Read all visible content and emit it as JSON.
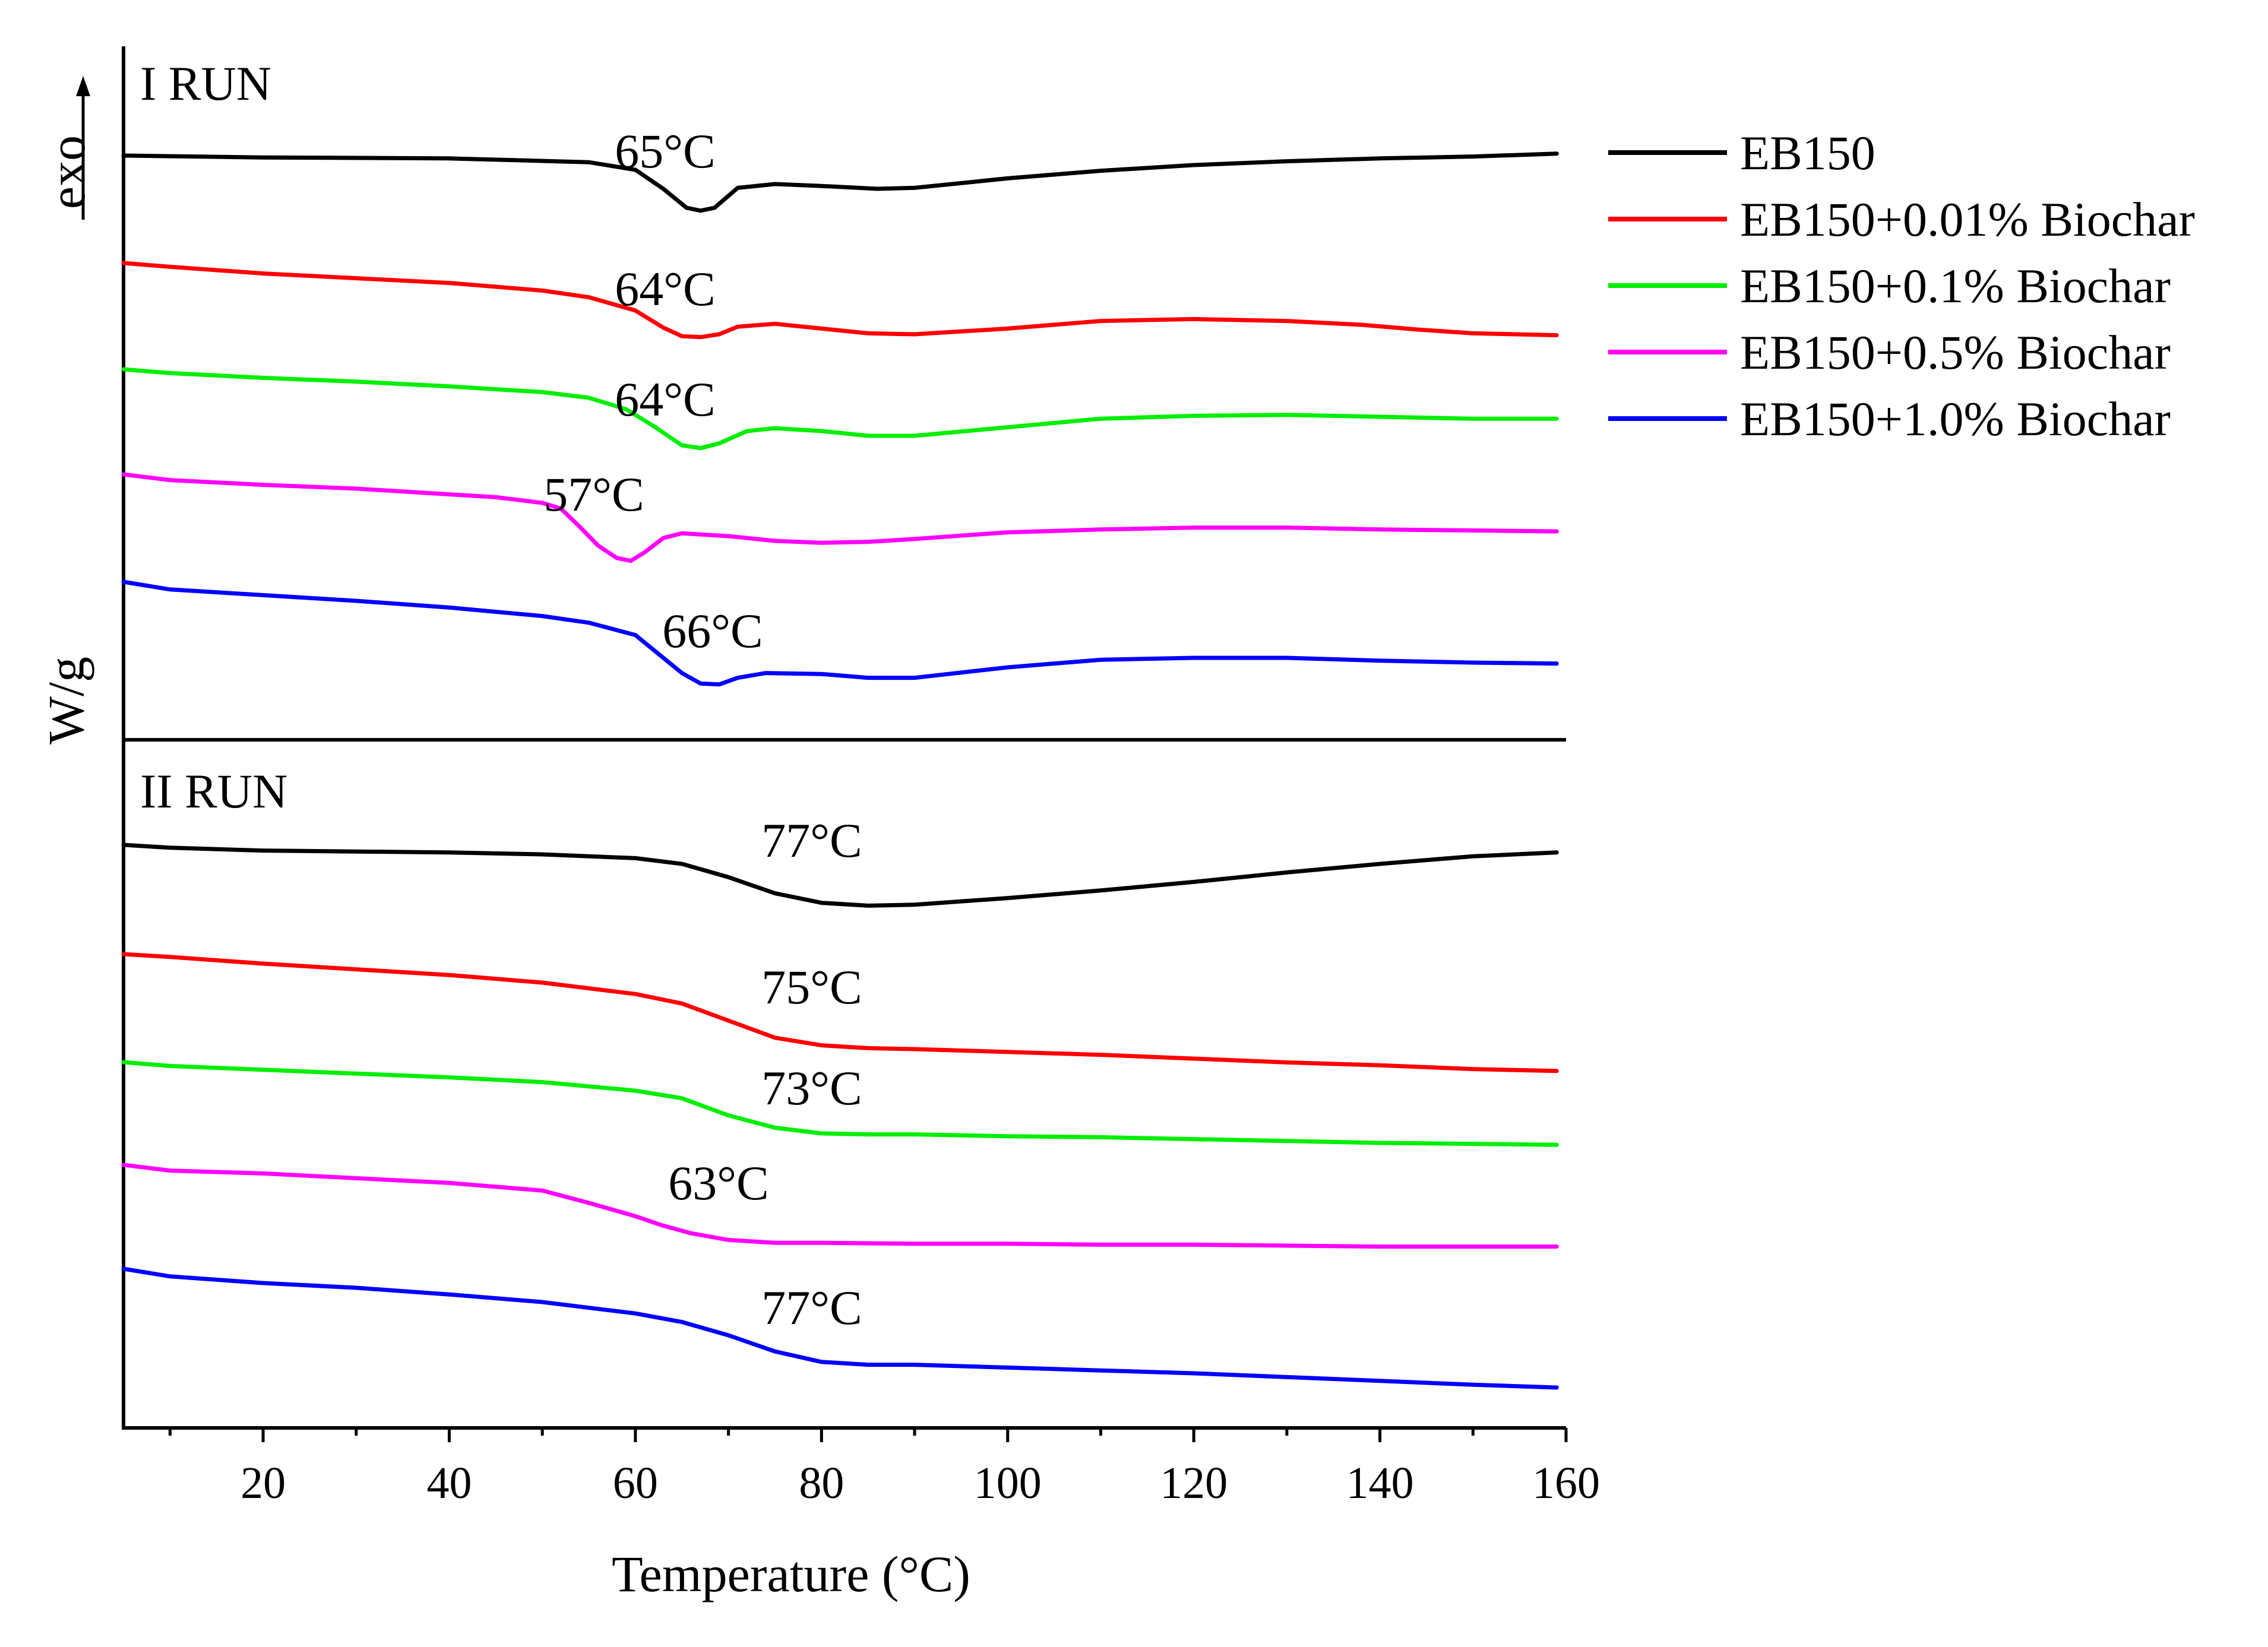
{
  "chart_data": {
    "type": "line",
    "title": "",
    "xlabel": "Temperature (°C)",
    "ylabel": "W/g",
    "exo_label": "exo",
    "xlim": [
      5,
      160
    ],
    "x_ticks": [
      20,
      40,
      60,
      80,
      100,
      120,
      140,
      160
    ],
    "grid": false,
    "legend_position": "top-right",
    "colors": [
      "#000000",
      "#ff0000",
      "#00ee00",
      "#ff00ff",
      "#0000ff"
    ],
    "legend": [
      "EB150",
      "EB150+0.01% Biochar",
      "EB150+0.1% Biochar",
      "EB150+0.5% Biochar",
      "EB150+1.0% Biochar"
    ],
    "panels": [
      {
        "label": "I RUN",
        "series": [
          {
            "name": "EB150",
            "color": "#000000",
            "peak_label": "65°C",
            "peak_x": 65,
            "points": [
              [
                5,
                2.0
              ],
              [
                20,
                1.98
              ],
              [
                40,
                1.97
              ],
              [
                55,
                1.93
              ],
              [
                60,
                1.85
              ],
              [
                63,
                1.65
              ],
              [
                65.5,
                1.45
              ],
              [
                67,
                1.42
              ],
              [
                68.5,
                1.45
              ],
              [
                71,
                1.66
              ],
              [
                75,
                1.7
              ],
              [
                80,
                1.68
              ],
              [
                86,
                1.65
              ],
              [
                90,
                1.66
              ],
              [
                100,
                1.76
              ],
              [
                110,
                1.84
              ],
              [
                120,
                1.9
              ],
              [
                130,
                1.94
              ],
              [
                140,
                1.97
              ],
              [
                150,
                1.99
              ],
              [
                159,
                2.02
              ]
            ]
          },
          {
            "name": "EB150+0.01% Biochar",
            "color": "#ff0000",
            "peak_label": "64°C",
            "peak_x": 64,
            "points": [
              [
                5,
                2.0
              ],
              [
                10,
                1.96
              ],
              [
                20,
                1.89
              ],
              [
                30,
                1.84
              ],
              [
                40,
                1.79
              ],
              [
                50,
                1.71
              ],
              [
                55,
                1.64
              ],
              [
                60,
                1.5
              ],
              [
                63,
                1.32
              ],
              [
                65,
                1.23
              ],
              [
                67,
                1.22
              ],
              [
                69,
                1.25
              ],
              [
                71,
                1.33
              ],
              [
                75,
                1.36
              ],
              [
                80,
                1.31
              ],
              [
                85,
                1.26
              ],
              [
                90,
                1.25
              ],
              [
                100,
                1.31
              ],
              [
                110,
                1.39
              ],
              [
                120,
                1.41
              ],
              [
                130,
                1.39
              ],
              [
                138,
                1.35
              ],
              [
                144,
                1.3
              ],
              [
                150,
                1.26
              ],
              [
                159,
                1.24
              ]
            ]
          },
          {
            "name": "EB150+0.1% Biochar",
            "color": "#00ee00",
            "peak_label": "64°C",
            "peak_x": 64,
            "points": [
              [
                5,
                2.0
              ],
              [
                10,
                1.96
              ],
              [
                20,
                1.91
              ],
              [
                30,
                1.87
              ],
              [
                40,
                1.82
              ],
              [
                50,
                1.76
              ],
              [
                55,
                1.7
              ],
              [
                59,
                1.58
              ],
              [
                62,
                1.4
              ],
              [
                65,
                1.2
              ],
              [
                67,
                1.17
              ],
              [
                69,
                1.22
              ],
              [
                72,
                1.35
              ],
              [
                75,
                1.38
              ],
              [
                80,
                1.35
              ],
              [
                85,
                1.3
              ],
              [
                90,
                1.3
              ],
              [
                100,
                1.39
              ],
              [
                110,
                1.48
              ],
              [
                120,
                1.51
              ],
              [
                130,
                1.52
              ],
              [
                140,
                1.5
              ],
              [
                150,
                1.48
              ],
              [
                159,
                1.48
              ]
            ]
          },
          {
            "name": "EB150+0.5% Biochar",
            "color": "#ff00ff",
            "peak_label": "57°C",
            "peak_x": 57,
            "points": [
              [
                5,
                2.0
              ],
              [
                10,
                1.94
              ],
              [
                20,
                1.89
              ],
              [
                30,
                1.85
              ],
              [
                40,
                1.79
              ],
              [
                45,
                1.76
              ],
              [
                50,
                1.7
              ],
              [
                52,
                1.64
              ],
              [
                54,
                1.45
              ],
              [
                56,
                1.25
              ],
              [
                58,
                1.12
              ],
              [
                59.5,
                1.09
              ],
              [
                61,
                1.18
              ],
              [
                63,
                1.33
              ],
              [
                65,
                1.38
              ],
              [
                70,
                1.35
              ],
              [
                75,
                1.3
              ],
              [
                80,
                1.28
              ],
              [
                85,
                1.29
              ],
              [
                90,
                1.32
              ],
              [
                100,
                1.39
              ],
              [
                110,
                1.42
              ],
              [
                120,
                1.44
              ],
              [
                130,
                1.44
              ],
              [
                140,
                1.42
              ],
              [
                150,
                1.41
              ],
              [
                159,
                1.4
              ]
            ]
          },
          {
            "name": "EB150+1.0% Biochar",
            "color": "#0000ff",
            "peak_label": "66°C",
            "peak_x": 66,
            "points": [
              [
                5,
                2.0
              ],
              [
                10,
                1.92
              ],
              [
                20,
                1.86
              ],
              [
                30,
                1.8
              ],
              [
                40,
                1.73
              ],
              [
                50,
                1.64
              ],
              [
                55,
                1.57
              ],
              [
                60,
                1.44
              ],
              [
                63,
                1.2
              ],
              [
                65,
                1.04
              ],
              [
                67,
                0.93
              ],
              [
                69,
                0.92
              ],
              [
                71,
                0.99
              ],
              [
                74,
                1.04
              ],
              [
                80,
                1.03
              ],
              [
                85,
                0.99
              ],
              [
                90,
                0.99
              ],
              [
                100,
                1.1
              ],
              [
                110,
                1.18
              ],
              [
                120,
                1.2
              ],
              [
                130,
                1.2
              ],
              [
                140,
                1.17
              ],
              [
                150,
                1.15
              ],
              [
                159,
                1.14
              ]
            ]
          }
        ]
      },
      {
        "label": "II RUN",
        "series": [
          {
            "name": "EB150",
            "color": "#000000",
            "peak_label": "77°C",
            "peak_x": 77,
            "points": [
              [
                5,
                2.0
              ],
              [
                10,
                1.97
              ],
              [
                20,
                1.94
              ],
              [
                30,
                1.93
              ],
              [
                40,
                1.92
              ],
              [
                50,
                1.9
              ],
              [
                60,
                1.86
              ],
              [
                65,
                1.8
              ],
              [
                70,
                1.66
              ],
              [
                75,
                1.49
              ],
              [
                80,
                1.39
              ],
              [
                85,
                1.36
              ],
              [
                90,
                1.37
              ],
              [
                100,
                1.44
              ],
              [
                110,
                1.52
              ],
              [
                120,
                1.61
              ],
              [
                130,
                1.71
              ],
              [
                140,
                1.8
              ],
              [
                150,
                1.88
              ],
              [
                159,
                1.92
              ]
            ]
          },
          {
            "name": "EB150+0.01% Biochar",
            "color": "#ff0000",
            "peak_label": "75°C",
            "peak_x": 75,
            "points": [
              [
                5,
                2.0
              ],
              [
                10,
                1.97
              ],
              [
                20,
                1.9
              ],
              [
                30,
                1.84
              ],
              [
                40,
                1.78
              ],
              [
                50,
                1.7
              ],
              [
                60,
                1.58
              ],
              [
                65,
                1.48
              ],
              [
                70,
                1.3
              ],
              [
                75,
                1.12
              ],
              [
                80,
                1.04
              ],
              [
                85,
                1.01
              ],
              [
                90,
                1.0
              ],
              [
                100,
                0.97
              ],
              [
                110,
                0.94
              ],
              [
                120,
                0.9
              ],
              [
                130,
                0.86
              ],
              [
                140,
                0.83
              ],
              [
                150,
                0.79
              ],
              [
                159,
                0.77
              ]
            ]
          },
          {
            "name": "EB150+0.1% Biochar",
            "color": "#00ee00",
            "peak_label": "73°C",
            "peak_x": 73,
            "points": [
              [
                5,
                2.0
              ],
              [
                10,
                1.96
              ],
              [
                20,
                1.92
              ],
              [
                30,
                1.88
              ],
              [
                40,
                1.84
              ],
              [
                50,
                1.79
              ],
              [
                60,
                1.7
              ],
              [
                65,
                1.62
              ],
              [
                70,
                1.44
              ],
              [
                75,
                1.31
              ],
              [
                80,
                1.25
              ],
              [
                85,
                1.24
              ],
              [
                90,
                1.24
              ],
              [
                100,
                1.22
              ],
              [
                110,
                1.21
              ],
              [
                120,
                1.19
              ],
              [
                130,
                1.17
              ],
              [
                140,
                1.15
              ],
              [
                150,
                1.14
              ],
              [
                159,
                1.13
              ]
            ]
          },
          {
            "name": "EB150+0.5% Biochar",
            "color": "#ff00ff",
            "peak_label": "63°C",
            "peak_x": 63,
            "points": [
              [
                5,
                2.0
              ],
              [
                10,
                1.94
              ],
              [
                20,
                1.91
              ],
              [
                30,
                1.86
              ],
              [
                40,
                1.81
              ],
              [
                50,
                1.73
              ],
              [
                55,
                1.6
              ],
              [
                60,
                1.46
              ],
              [
                63,
                1.36
              ],
              [
                66,
                1.28
              ],
              [
                70,
                1.21
              ],
              [
                75,
                1.18
              ],
              [
                80,
                1.18
              ],
              [
                90,
                1.17
              ],
              [
                100,
                1.17
              ],
              [
                110,
                1.16
              ],
              [
                120,
                1.16
              ],
              [
                130,
                1.15
              ],
              [
                140,
                1.14
              ],
              [
                150,
                1.14
              ],
              [
                159,
                1.14
              ]
            ]
          },
          {
            "name": "EB150+1.0% Biochar",
            "color": "#0000ff",
            "peak_label": "77°C",
            "peak_x": 77,
            "points": [
              [
                5,
                2.0
              ],
              [
                10,
                1.92
              ],
              [
                20,
                1.85
              ],
              [
                30,
                1.8
              ],
              [
                40,
                1.73
              ],
              [
                50,
                1.65
              ],
              [
                60,
                1.53
              ],
              [
                65,
                1.44
              ],
              [
                70,
                1.3
              ],
              [
                75,
                1.13
              ],
              [
                80,
                1.02
              ],
              [
                85,
                0.99
              ],
              [
                90,
                0.99
              ],
              [
                100,
                0.96
              ],
              [
                110,
                0.93
              ],
              [
                120,
                0.9
              ],
              [
                130,
                0.86
              ],
              [
                140,
                0.82
              ],
              [
                150,
                0.78
              ],
              [
                159,
                0.75
              ]
            ]
          }
        ]
      }
    ]
  }
}
